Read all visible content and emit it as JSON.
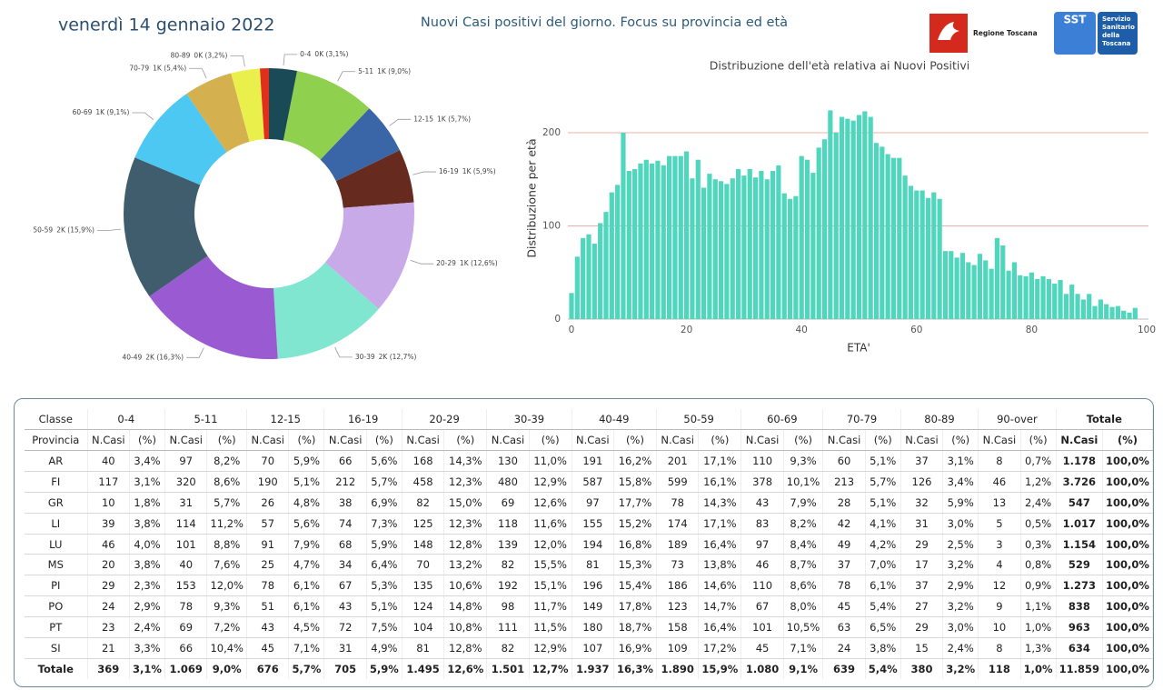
{
  "header": {
    "date": "venerdì 14 gennaio 2022",
    "title": "Nuovi Casi positivi del giorno. Focus su provincia ed età",
    "logo_left": "Regione Toscana",
    "logo_right_mark": "SST",
    "logo_right_text": [
      "Servizio",
      "Sanitario",
      "della",
      "Toscana"
    ]
  },
  "chart_data": [
    {
      "type": "donut",
      "categories": [
        "0-4",
        "5-11",
        "12-15",
        "16-19",
        "20-29",
        "30-39",
        "40-49",
        "50-59",
        "60-69",
        "70-79",
        "80-89",
        null
      ],
      "values": [
        369,
        1069,
        676,
        705,
        1495,
        1501,
        1937,
        1890,
        1080,
        639,
        380,
        118
      ],
      "value_labels": [
        "0K (3,1%)",
        "1K (9,0%)",
        "1K (5,7%)",
        "1K (5,9%)",
        "1K (12,6%)",
        "2K (12,7%)",
        "2K (16,3%)",
        "2K (15,9%)",
        "1K (9,1%)",
        "1K (5,4%)",
        "0K (3,2%)",
        null
      ],
      "colors": [
        "#1a4a55",
        "#8fd14f",
        "#3a66a8",
        "#662a1e",
        "#c8aae8",
        "#80e6d0",
        "#9a5ad2",
        "#3f5d6c",
        "#4cc8f2",
        "#d4b14e",
        "#e9f04c",
        "#e0301c"
      ]
    },
    {
      "type": "bar",
      "title": "Distribuzione dell'età relativa ai Nuovi Positivi",
      "y_label": "Distribuzione per età",
      "x_label": "ETA'",
      "color": "#4fd6bd",
      "grid": true,
      "x": [
        0,
        1,
        2,
        3,
        4,
        5,
        6,
        7,
        8,
        9,
        10,
        11,
        12,
        13,
        14,
        15,
        16,
        17,
        18,
        19,
        20,
        21,
        22,
        23,
        24,
        25,
        26,
        27,
        28,
        29,
        30,
        31,
        32,
        33,
        34,
        35,
        36,
        37,
        38,
        39,
        40,
        41,
        42,
        43,
        44,
        45,
        46,
        47,
        48,
        49,
        50,
        51,
        52,
        53,
        54,
        55,
        56,
        57,
        58,
        59,
        60,
        61,
        62,
        63,
        64,
        65,
        66,
        67,
        68,
        69,
        70,
        71,
        72,
        73,
        74,
        75,
        76,
        77,
        78,
        79,
        80,
        81,
        82,
        83,
        84,
        85,
        86,
        87,
        88,
        89,
        90,
        91,
        92,
        93,
        94,
        95,
        96,
        97,
        98
      ],
      "values": [
        28,
        67,
        87,
        91,
        81,
        103,
        115,
        136,
        144,
        200,
        159,
        161,
        167,
        171,
        167,
        170,
        165,
        175,
        175,
        175,
        180,
        151,
        171,
        141,
        156,
        150,
        148,
        145,
        151,
        161,
        154,
        161,
        152,
        159,
        150,
        159,
        165,
        135,
        129,
        132,
        175,
        171,
        157,
        184,
        193,
        224,
        200,
        217,
        215,
        213,
        219,
        223,
        217,
        189,
        185,
        177,
        173,
        173,
        154,
        143,
        138,
        138,
        130,
        136,
        129,
        73,
        73,
        66,
        71,
        61,
        58,
        70,
        63,
        54,
        87,
        79,
        52,
        61,
        47,
        46,
        50,
        43,
        46,
        43,
        38,
        42,
        27,
        37,
        27,
        21,
        27,
        14,
        21,
        16,
        13,
        14,
        9,
        7,
        12
      ],
      "xlim": [
        0,
        100
      ],
      "xticks": [
        0,
        20,
        40,
        60,
        80,
        100
      ],
      "ylim": [
        0,
        230
      ],
      "yticks": [
        0,
        100,
        200
      ]
    }
  ],
  "table": {
    "group_headers": [
      "Classe",
      "0-4",
      "5-11",
      "12-15",
      "16-19",
      "20-29",
      "30-39",
      "40-49",
      "50-59",
      "60-69",
      "70-79",
      "80-89",
      "90-over",
      "Totale"
    ],
    "sub_headers": [
      "Provincia",
      "N.Casi",
      "(%)",
      "N.Casi",
      "(%)",
      "N.Casi",
      "(%)",
      "N.Casi",
      "(%)",
      "N.Casi",
      "(%)",
      "N.Casi",
      "(%)",
      "N.Casi",
      "(%)",
      "N.Casi",
      "(%)",
      "N.Casi",
      "(%)",
      "N.Casi",
      "(%)",
      "N.Casi",
      "(%)",
      "N.Casi",
      "(%)",
      "N.Casi",
      "(%)"
    ],
    "rows": [
      [
        "AR",
        "40",
        "3,4%",
        "97",
        "8,2%",
        "70",
        "5,9%",
        "66",
        "5,6%",
        "168",
        "14,3%",
        "130",
        "11,0%",
        "191",
        "16,2%",
        "201",
        "17,1%",
        "110",
        "9,3%",
        "60",
        "5,1%",
        "37",
        "3,1%",
        "8",
        "0,7%",
        "1.178",
        "100,0%"
      ],
      [
        "FI",
        "117",
        "3,1%",
        "320",
        "8,6%",
        "190",
        "5,1%",
        "212",
        "5,7%",
        "458",
        "12,3%",
        "480",
        "12,9%",
        "587",
        "15,8%",
        "599",
        "16,1%",
        "378",
        "10,1%",
        "213",
        "5,7%",
        "126",
        "3,4%",
        "46",
        "1,2%",
        "3.726",
        "100,0%"
      ],
      [
        "GR",
        "10",
        "1,8%",
        "31",
        "5,7%",
        "26",
        "4,8%",
        "38",
        "6,9%",
        "82",
        "15,0%",
        "69",
        "12,6%",
        "97",
        "17,7%",
        "78",
        "14,3%",
        "43",
        "7,9%",
        "28",
        "5,1%",
        "32",
        "5,9%",
        "13",
        "2,4%",
        "547",
        "100,0%"
      ],
      [
        "LI",
        "39",
        "3,8%",
        "114",
        "11,2%",
        "57",
        "5,6%",
        "74",
        "7,3%",
        "125",
        "12,3%",
        "118",
        "11,6%",
        "155",
        "15,2%",
        "174",
        "17,1%",
        "83",
        "8,2%",
        "42",
        "4,1%",
        "31",
        "3,0%",
        "5",
        "0,5%",
        "1.017",
        "100,0%"
      ],
      [
        "LU",
        "46",
        "4,0%",
        "101",
        "8,8%",
        "91",
        "7,9%",
        "68",
        "5,9%",
        "148",
        "12,8%",
        "139",
        "12,0%",
        "194",
        "16,8%",
        "189",
        "16,4%",
        "97",
        "8,4%",
        "49",
        "4,2%",
        "29",
        "2,5%",
        "3",
        "0,3%",
        "1.154",
        "100,0%"
      ],
      [
        "MS",
        "20",
        "3,8%",
        "40",
        "7,6%",
        "25",
        "4,7%",
        "34",
        "6,4%",
        "70",
        "13,2%",
        "82",
        "15,5%",
        "81",
        "15,3%",
        "73",
        "13,8%",
        "46",
        "8,7%",
        "37",
        "7,0%",
        "17",
        "3,2%",
        "4",
        "0,8%",
        "529",
        "100,0%"
      ],
      [
        "PI",
        "29",
        "2,3%",
        "153",
        "12,0%",
        "78",
        "6,1%",
        "67",
        "5,3%",
        "135",
        "10,6%",
        "192",
        "15,1%",
        "196",
        "15,4%",
        "186",
        "14,6%",
        "110",
        "8,6%",
        "78",
        "6,1%",
        "37",
        "2,9%",
        "12",
        "0,9%",
        "1.273",
        "100,0%"
      ],
      [
        "PO",
        "24",
        "2,9%",
        "78",
        "9,3%",
        "51",
        "6,1%",
        "43",
        "5,1%",
        "124",
        "14,8%",
        "98",
        "11,7%",
        "149",
        "17,8%",
        "123",
        "14,7%",
        "67",
        "8,0%",
        "45",
        "5,4%",
        "27",
        "3,2%",
        "9",
        "1,1%",
        "838",
        "100,0%"
      ],
      [
        "PT",
        "23",
        "2,4%",
        "69",
        "7,2%",
        "43",
        "4,5%",
        "72",
        "7,5%",
        "104",
        "10,8%",
        "111",
        "11,5%",
        "180",
        "18,7%",
        "158",
        "16,4%",
        "101",
        "10,5%",
        "63",
        "6,5%",
        "29",
        "3,0%",
        "10",
        "1,0%",
        "963",
        "100,0%"
      ],
      [
        "SI",
        "21",
        "3,3%",
        "66",
        "10,4%",
        "45",
        "7,1%",
        "31",
        "4,9%",
        "81",
        "12,8%",
        "82",
        "12,9%",
        "107",
        "16,9%",
        "109",
        "17,2%",
        "45",
        "7,1%",
        "24",
        "3,8%",
        "15",
        "2,4%",
        "8",
        "1,3%",
        "634",
        "100,0%"
      ],
      [
        "Totale",
        "369",
        "3,1%",
        "1.069",
        "9,0%",
        "676",
        "5,7%",
        "705",
        "5,9%",
        "1.495",
        "12,6%",
        "1.501",
        "12,7%",
        "1.937",
        "16,3%",
        "1.890",
        "15,9%",
        "1.080",
        "9,1%",
        "639",
        "5,4%",
        "380",
        "3,2%",
        "118",
        "1,0%",
        "11.859",
        "100,0%"
      ]
    ]
  }
}
